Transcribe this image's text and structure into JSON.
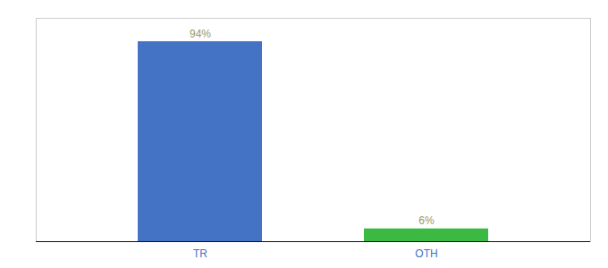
{
  "chart_data": {
    "type": "bar",
    "categories": [
      "TR",
      "OTH"
    ],
    "values": [
      94,
      6
    ],
    "value_labels": [
      "94%",
      "6%"
    ],
    "colors": [
      "#4472c4",
      "#3cb943"
    ],
    "ylim": [
      0,
      105
    ],
    "data_labels": true,
    "tick_labels": "x",
    "grid": false
  }
}
